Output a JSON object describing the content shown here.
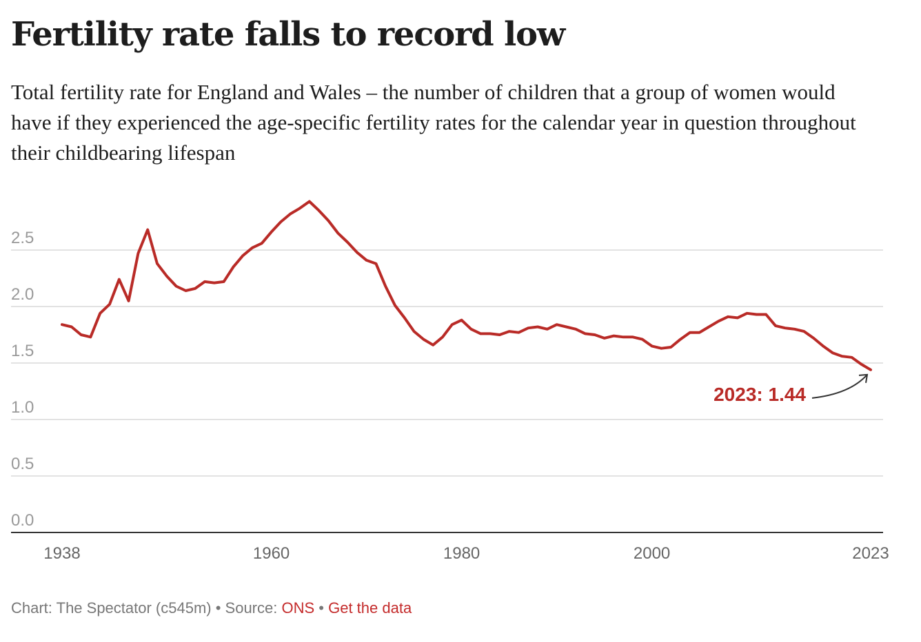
{
  "header": {
    "title": "Fertility rate falls to record low",
    "subtitle": "Total fertility rate for England and Wales – the number of children that a group of women would have if they experienced the age-specific fertility rates for the calendar year in question throughout their childbearing lifespan"
  },
  "footer": {
    "credit": "Chart: The Spectator (c545m) • Source: ",
    "source_link": "ONS",
    "separator": " • ",
    "data_link": "Get the data"
  },
  "colors": {
    "line": "#b92b27",
    "annotation": "#b92b27",
    "link": "#c42b2b",
    "grid": "#e2e2e2",
    "axis": "#333333"
  },
  "chart_data": {
    "type": "line",
    "title": "Fertility rate falls to record low",
    "xlabel": "",
    "ylabel": "Total fertility rate",
    "xlim": [
      1938,
      2023
    ],
    "ylim": [
      0,
      3.0
    ],
    "grid": true,
    "x_ticks": [
      1938,
      1960,
      1980,
      2000,
      2023
    ],
    "x_tick_labels": [
      "1938",
      "1960",
      "1980",
      "2000",
      "2023"
    ],
    "y_ticks": [
      0,
      0.5,
      1.0,
      1.5,
      2.0,
      2.5
    ],
    "y_tick_labels": [
      "0.0",
      "0.5",
      "1.0",
      "1.5",
      "2.0",
      "2.5"
    ],
    "series": [
      {
        "name": "Total fertility rate",
        "x": [
          1938,
          1939,
          1940,
          1941,
          1942,
          1943,
          1944,
          1945,
          1946,
          1947,
          1948,
          1949,
          1950,
          1951,
          1952,
          1953,
          1954,
          1955,
          1956,
          1957,
          1958,
          1959,
          1960,
          1961,
          1962,
          1963,
          1964,
          1965,
          1966,
          1967,
          1968,
          1969,
          1970,
          1971,
          1972,
          1973,
          1974,
          1975,
          1976,
          1977,
          1978,
          1979,
          1980,
          1981,
          1982,
          1983,
          1984,
          1985,
          1986,
          1987,
          1988,
          1989,
          1990,
          1991,
          1992,
          1993,
          1994,
          1995,
          1996,
          1997,
          1998,
          1999,
          2000,
          2001,
          2002,
          2003,
          2004,
          2005,
          2006,
          2007,
          2008,
          2009,
          2010,
          2011,
          2012,
          2013,
          2014,
          2015,
          2016,
          2017,
          2018,
          2019,
          2020,
          2021,
          2022,
          2023
        ],
        "values": [
          1.84,
          1.82,
          1.75,
          1.73,
          1.94,
          2.02,
          2.24,
          2.05,
          2.47,
          2.68,
          2.38,
          2.27,
          2.18,
          2.14,
          2.16,
          2.22,
          2.21,
          2.22,
          2.35,
          2.45,
          2.52,
          2.56,
          2.66,
          2.75,
          2.82,
          2.87,
          2.93,
          2.85,
          2.76,
          2.65,
          2.57,
          2.48,
          2.41,
          2.38,
          2.18,
          2.01,
          1.9,
          1.78,
          1.71,
          1.66,
          1.73,
          1.84,
          1.88,
          1.8,
          1.76,
          1.76,
          1.75,
          1.78,
          1.77,
          1.81,
          1.82,
          1.8,
          1.84,
          1.82,
          1.8,
          1.76,
          1.75,
          1.72,
          1.74,
          1.73,
          1.73,
          1.71,
          1.65,
          1.63,
          1.64,
          1.71,
          1.77,
          1.77,
          1.82,
          1.87,
          1.91,
          1.9,
          1.94,
          1.93,
          1.93,
          1.83,
          1.81,
          1.8,
          1.78,
          1.72,
          1.65,
          1.59,
          1.56,
          1.55,
          1.49,
          1.44
        ],
        "color": "#b92b27"
      }
    ],
    "annotations": [
      {
        "text": "2023: 1.44",
        "x": 2023,
        "y": 1.44,
        "arrow": true
      }
    ],
    "legend": "none"
  }
}
